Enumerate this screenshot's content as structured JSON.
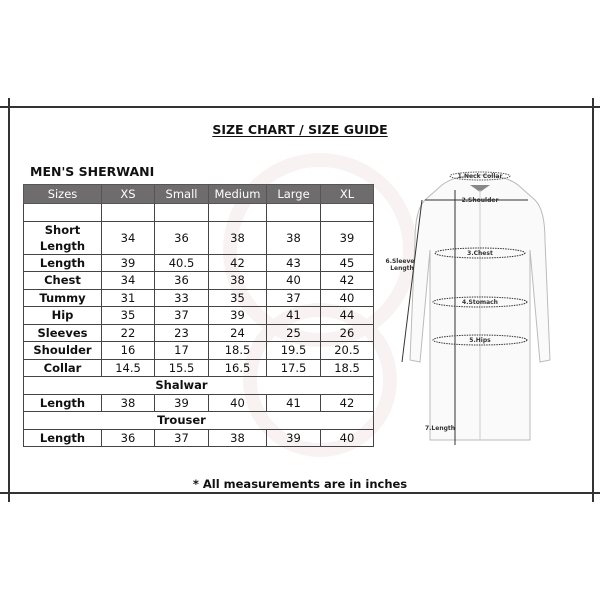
{
  "title": "SIZE CHART / SIZE GUIDE",
  "subtitle": "MEN'S SHERWANI",
  "table": {
    "headers": [
      "Sizes",
      "XS",
      "Small",
      "Medium",
      "Large",
      "XL"
    ],
    "sherwani_rows": [
      {
        "label": "Short Length",
        "values": [
          "34",
          "36",
          "38",
          "38",
          "39"
        ]
      },
      {
        "label": "Length",
        "values": [
          "39",
          "40.5",
          "42",
          "43",
          "45"
        ]
      },
      {
        "label": "Chest",
        "values": [
          "34",
          "36",
          "38",
          "40",
          "42"
        ]
      },
      {
        "label": "Tummy",
        "values": [
          "31",
          "33",
          "35",
          "37",
          "40"
        ]
      },
      {
        "label": "Hip",
        "values": [
          "35",
          "37",
          "39",
          "41",
          "44"
        ]
      },
      {
        "label": "Sleeves",
        "values": [
          "22",
          "23",
          "24",
          "25",
          "26"
        ]
      },
      {
        "label": "Shoulder",
        "values": [
          "16",
          "17",
          "18.5",
          "19.5",
          "20.5"
        ]
      },
      {
        "label": "Collar",
        "values": [
          "14.5",
          "15.5",
          "16.5",
          "17.5",
          "18.5"
        ]
      }
    ],
    "shalwar": {
      "section": "Shalwar",
      "label": "Length",
      "values": [
        "38",
        "39",
        "40",
        "41",
        "42"
      ]
    },
    "trouser": {
      "section": "Trouser",
      "label": "Length",
      "values": [
        "36",
        "37",
        "38",
        "39",
        "40"
      ]
    }
  },
  "diagram": {
    "neck_collar": "1.Neck Collar",
    "shoulder": "2.Shoulder",
    "chest": "3.Chest",
    "stomach": "4.Stomach",
    "hips": "5.Hips",
    "sleeve_1": "6.Sleeve",
    "sleeve_2": "Length",
    "length": "7.Length"
  },
  "note": "* All measurements are in inches",
  "colors": {
    "header_bg": "#6e6c6c",
    "header_text": "#ffffff",
    "border": "#444444"
  }
}
